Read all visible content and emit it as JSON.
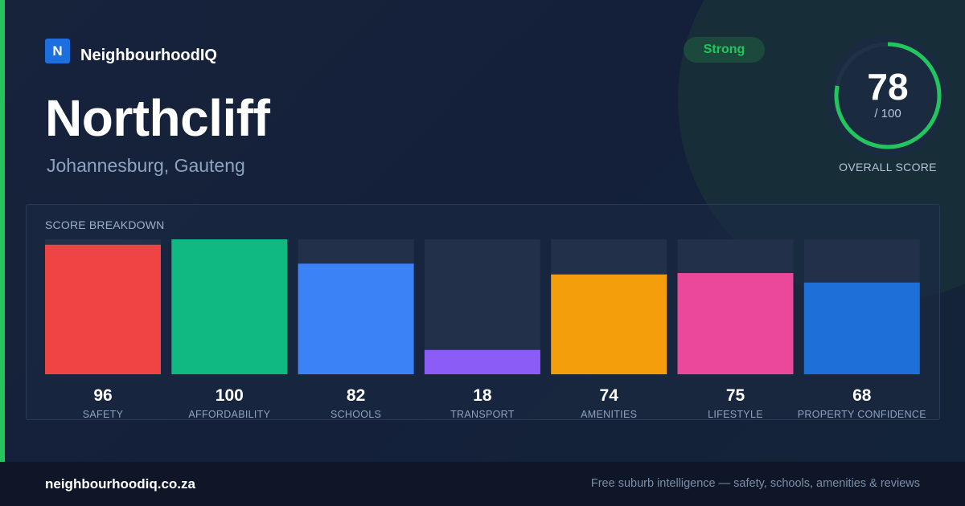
{
  "brand": {
    "logo_letter": "N",
    "name": "NeighbourhoodIQ"
  },
  "suburb": {
    "name": "Northcliff",
    "location": "Johannesburg, Gauteng"
  },
  "rating_badge": "Strong",
  "overall": {
    "score": "78",
    "max": "/ 100",
    "label": "OVERALL SCORE",
    "fraction": 0.78,
    "color": "#22c55e"
  },
  "breakdown_title": "SCORE BREAKDOWN",
  "chart_data": {
    "type": "bar",
    "title": "SCORE BREAKDOWN",
    "categories": [
      "SAFETY",
      "AFFORDABILITY",
      "SCHOOLS",
      "TRANSPORT",
      "AMENITIES",
      "LIFESTYLE",
      "PROPERTY CONFIDENCE"
    ],
    "values": [
      96,
      100,
      82,
      18,
      74,
      75,
      68
    ],
    "colors": [
      "#ef4444",
      "#10b981",
      "#3b82f6",
      "#8b5cf6",
      "#f59e0b",
      "#ec4899",
      "#1f6fd8"
    ],
    "ylim": [
      0,
      100
    ],
    "grid": false
  },
  "footer": {
    "url": "neighbourhoodiq.co.za",
    "tagline": "Free suburb intelligence — safety, schools, amenities & reviews"
  },
  "colors": {
    "accent": "#22c55e",
    "background": "#15213a",
    "footer": "#0e1627"
  }
}
